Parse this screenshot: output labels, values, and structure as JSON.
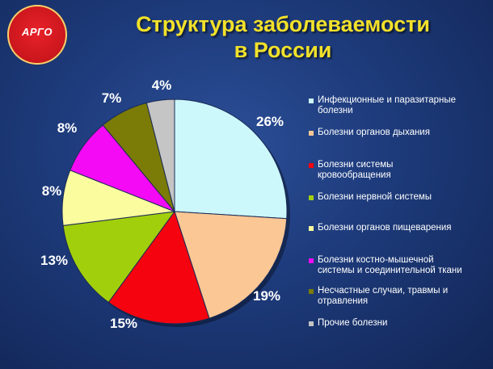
{
  "logo": {
    "text": "АРГО"
  },
  "title_lines": [
    "Структура заболеваемости",
    "в России"
  ],
  "chart_data": {
    "type": "pie",
    "title": "Структура заболеваемости в России",
    "categories": [
      "Инфекционные и паразитарные болезни",
      "Болезни органов дыхания",
      "Болезни системы кровообращения",
      "Болезни нервной системы",
      "Болезни органов пищеварения",
      "Болезни костно-мышечной системы и соединительной ткани",
      "Несчастные случаи, травмы и отравления",
      "Прочие болезни"
    ],
    "values": [
      26,
      19,
      15,
      13,
      8,
      8,
      7,
      4
    ],
    "value_labels": [
      "26%",
      "19%",
      "15%",
      "13%",
      "8%",
      "8%",
      "7%",
      "4%"
    ],
    "colors": [
      "#ccf8fc",
      "#fac795",
      "#f5030f",
      "#a2cf0c",
      "#fafc9e",
      "#f50af5",
      "#7b7b08",
      "#c5c5c5"
    ],
    "legend_lines": [
      [
        "Инфекционные и паразитарные",
        "болезни"
      ],
      [
        "Болезни органов дыхания"
      ],
      [
        "Болезни системы",
        "кровообращения"
      ],
      [
        "Болезни нервной системы"
      ],
      [
        "Болезни органов пищеварения"
      ],
      [
        "Болезни костно-мышечной",
        "системы и соединительной ткани"
      ],
      [
        "Несчастные случаи, травмы и",
        "отравления"
      ],
      [
        "Прочие болезни"
      ]
    ],
    "legend": "right",
    "grid": false
  }
}
